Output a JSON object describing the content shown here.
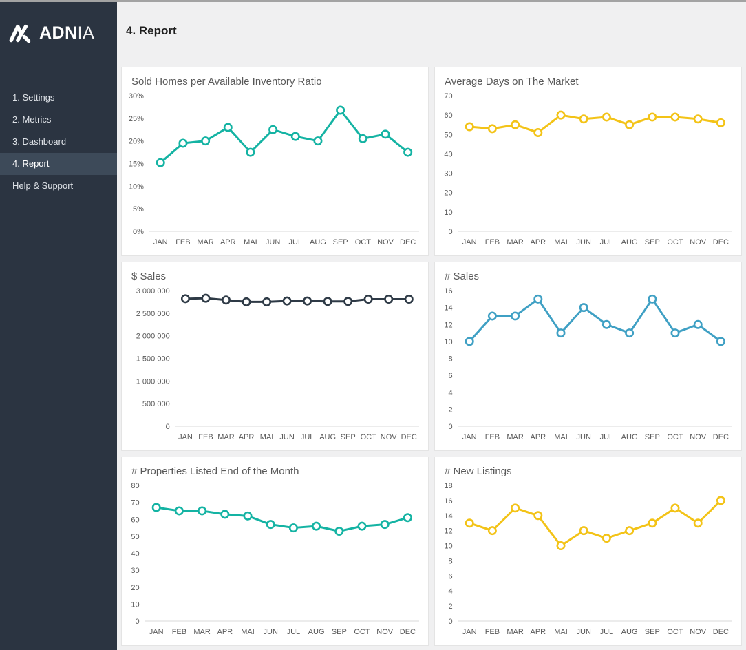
{
  "page": {
    "title": "4. Report"
  },
  "sidebar": {
    "logo": {
      "icon": "adnia-logo-mark",
      "brand_bold": "ADN",
      "brand_light": "IA"
    },
    "items": [
      {
        "label": "1. Settings",
        "active": false
      },
      {
        "label": "2. Metrics",
        "active": false
      },
      {
        "label": "3. Dashboard",
        "active": false
      },
      {
        "label": "4. Report",
        "active": true
      },
      {
        "label": "Help & Support",
        "active": false
      }
    ]
  },
  "colors": {
    "sidebar_bg": "#2b3441",
    "sidebar_active_bg": "#3d4a59",
    "main_bg": "#f0f0f1",
    "card_bg": "#ffffff",
    "teal": "#14b3a3",
    "yellow": "#f3c317",
    "dark": "#2e3a46",
    "blue": "#3fa0c4",
    "axis_text": "#595959",
    "axis_line": "#d9d9d9"
  },
  "categories": [
    "JAN",
    "FEB",
    "MAR",
    "APR",
    "MAI",
    "JUN",
    "JUL",
    "AUG",
    "SEP",
    "OCT",
    "NOV",
    "DEC"
  ],
  "chart_data": [
    {
      "type": "line",
      "title": "Sold Homes per Available Inventory Ratio",
      "color": "#14b3a3",
      "ylim": [
        0,
        30
      ],
      "tick_values": [
        0,
        5,
        10,
        15,
        20,
        25,
        30
      ],
      "tick_labels": [
        "0%",
        "5%",
        "10%",
        "15%",
        "20%",
        "25%",
        "30%"
      ],
      "values": [
        15.2,
        19.5,
        20,
        23,
        17.5,
        22.5,
        21,
        20,
        26.8,
        20.5,
        21.5,
        17.5
      ]
    },
    {
      "type": "line",
      "title": "Average Days on The Market",
      "color": "#f3c317",
      "ylim": [
        0,
        70
      ],
      "tick_values": [
        0,
        10,
        20,
        30,
        40,
        50,
        60,
        70
      ],
      "tick_labels": [
        "0",
        "10",
        "20",
        "30",
        "40",
        "50",
        "60",
        "70"
      ],
      "values": [
        54,
        53,
        55,
        51,
        60,
        58,
        59,
        55,
        59,
        59,
        58,
        56
      ]
    },
    {
      "type": "line",
      "title": "$ Sales",
      "color": "#2e3a46",
      "ylim": [
        0,
        3000000
      ],
      "tick_values": [
        0,
        500000,
        1000000,
        1500000,
        2000000,
        2500000,
        3000000
      ],
      "tick_labels": [
        "0",
        "500 000",
        "1 000 000",
        "1 500 000",
        "2 000 000",
        "2 500 000",
        "3 000 000"
      ],
      "values": [
        2820000,
        2830000,
        2790000,
        2750000,
        2750000,
        2770000,
        2770000,
        2760000,
        2760000,
        2810000,
        2810000,
        2810000
      ]
    },
    {
      "type": "line",
      "title": "# Sales",
      "color": "#3fa0c4",
      "ylim": [
        0,
        16
      ],
      "tick_values": [
        0,
        2,
        4,
        6,
        8,
        10,
        12,
        14,
        16
      ],
      "tick_labels": [
        "0",
        "2",
        "4",
        "6",
        "8",
        "10",
        "12",
        "14",
        "16"
      ],
      "values": [
        10,
        13,
        13,
        15,
        11,
        14,
        12,
        11,
        15,
        11,
        12,
        10
      ]
    },
    {
      "type": "line",
      "title": "# Properties Listed End of the Month",
      "color": "#14b3a3",
      "ylim": [
        0,
        80
      ],
      "tick_values": [
        0,
        10,
        20,
        30,
        40,
        50,
        60,
        70,
        80
      ],
      "tick_labels": [
        "0",
        "10",
        "20",
        "30",
        "40",
        "50",
        "60",
        "70",
        "80"
      ],
      "values": [
        67,
        65,
        65,
        63,
        62,
        57,
        55,
        56,
        53,
        56,
        57,
        61
      ]
    },
    {
      "type": "line",
      "title": "# New Listings",
      "color": "#f3c317",
      "ylim": [
        0,
        18
      ],
      "tick_values": [
        0,
        2,
        4,
        6,
        8,
        10,
        12,
        14,
        16,
        18
      ],
      "tick_labels": [
        "0",
        "2",
        "4",
        "6",
        "8",
        "10",
        "12",
        "14",
        "16",
        "18"
      ],
      "values": [
        13,
        12,
        15,
        14,
        10,
        12,
        11,
        12,
        13,
        15,
        13,
        16
      ]
    }
  ]
}
